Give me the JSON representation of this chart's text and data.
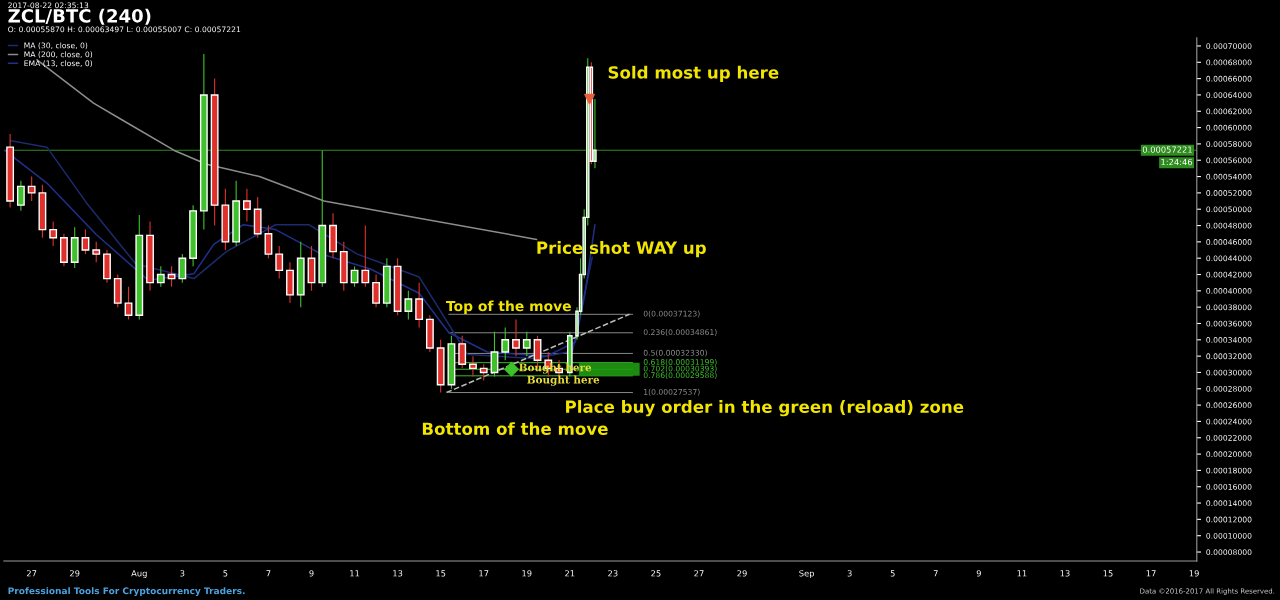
{
  "chart_data": {
    "type": "candlestick",
    "title": "ZCL/BTC (240)",
    "subtitle": "O: 0.00055870 H: 0.00063497 L: 0.00055007 C: 0.00057221",
    "x": [
      "2017-07-26T00:00",
      "2017-07-26T12:00",
      "2017-07-27T00:00",
      "2017-07-27T12:00",
      "2017-07-28T00:00",
      "2017-07-28T12:00",
      "2017-07-29T00:00",
      "2017-07-29T12:00",
      "2017-07-30T00:00",
      "2017-07-30T12:00",
      "2017-07-31T00:00",
      "2017-07-31T12:00",
      "2017-08-01T00:00",
      "2017-08-01T12:00",
      "2017-08-02T00:00",
      "2017-08-02T12:00",
      "2017-08-03T00:00",
      "2017-08-03T12:00",
      "2017-08-04T00:00",
      "2017-08-04T12:00",
      "2017-08-05T00:00",
      "2017-08-05T12:00",
      "2017-08-06T00:00",
      "2017-08-06T12:00",
      "2017-08-07T00:00",
      "2017-08-07T12:00",
      "2017-08-08T00:00",
      "2017-08-08T12:00",
      "2017-08-09T00:00",
      "2017-08-09T12:00",
      "2017-08-10T00:00",
      "2017-08-10T12:00",
      "2017-08-11T00:00",
      "2017-08-11T12:00",
      "2017-08-12T00:00",
      "2017-08-12T12:00",
      "2017-08-13T00:00",
      "2017-08-13T12:00",
      "2017-08-14T00:00",
      "2017-08-14T12:00",
      "2017-08-15T00:00",
      "2017-08-15T12:00",
      "2017-08-16T00:00",
      "2017-08-16T12:00",
      "2017-08-17T00:00",
      "2017-08-17T12:00",
      "2017-08-18T00:00",
      "2017-08-18T12:00",
      "2017-08-19T00:00",
      "2017-08-19T12:00",
      "2017-08-20T00:00",
      "2017-08-20T12:00",
      "2017-08-21T00:00",
      "2017-08-21T08:00",
      "2017-08-21T12:00",
      "2017-08-21T16:00",
      "2017-08-21T20:00",
      "2017-08-22T00:00",
      "2017-08-22T04:00"
    ],
    "ohlc": [
      [
        0.000576,
        0.000592,
        0.000502,
        0.00051
      ],
      [
        0.000505,
        0.000535,
        0.000498,
        0.000528
      ],
      [
        0.000528,
        0.00054,
        0.00051,
        0.00052
      ],
      [
        0.00052,
        0.00053,
        0.000465,
        0.000475
      ],
      [
        0.000475,
        0.000485,
        0.000455,
        0.000465
      ],
      [
        0.000465,
        0.00047,
        0.00043,
        0.000435
      ],
      [
        0.000435,
        0.000478,
        0.000428,
        0.000465
      ],
      [
        0.000465,
        0.000475,
        0.000445,
        0.00045
      ],
      [
        0.00045,
        0.00046,
        0.000435,
        0.000445
      ],
      [
        0.000445,
        0.00045,
        0.00041,
        0.000415
      ],
      [
        0.000415,
        0.00042,
        0.00038,
        0.000385
      ],
      [
        0.000385,
        0.000405,
        0.000365,
        0.00037
      ],
      [
        0.00037,
        0.000493,
        0.000365,
        0.000468
      ],
      [
        0.000468,
        0.000485,
        0.0004,
        0.00041
      ],
      [
        0.00041,
        0.00043,
        0.000405,
        0.00042
      ],
      [
        0.00042,
        0.00043,
        0.000405,
        0.000415
      ],
      [
        0.000415,
        0.000445,
        0.00041,
        0.00044
      ],
      [
        0.00044,
        0.000505,
        0.00043,
        0.000498
      ],
      [
        0.000498,
        0.00069,
        0.000475,
        0.00064
      ],
      [
        0.00064,
        0.00066,
        0.00048,
        0.000505
      ],
      [
        0.000505,
        0.000525,
        0.00045,
        0.00046
      ],
      [
        0.00046,
        0.000535,
        0.000455,
        0.00051
      ],
      [
        0.00051,
        0.000525,
        0.000485,
        0.0005
      ],
      [
        0.0005,
        0.000515,
        0.000465,
        0.00047
      ],
      [
        0.00047,
        0.00048,
        0.00044,
        0.000445
      ],
      [
        0.000445,
        0.000455,
        0.000415,
        0.000425
      ],
      [
        0.000425,
        0.000435,
        0.000385,
        0.000395
      ],
      [
        0.000395,
        0.00046,
        0.00038,
        0.00044
      ],
      [
        0.00044,
        0.000455,
        0.0004,
        0.00041
      ],
      [
        0.00041,
        0.000572,
        0.000405,
        0.00048
      ],
      [
        0.00048,
        0.000495,
        0.00044,
        0.000448
      ],
      [
        0.000448,
        0.00046,
        0.0004,
        0.00041
      ],
      [
        0.00041,
        0.00043,
        0.000405,
        0.000425
      ],
      [
        0.000425,
        0.00048,
        0.000405,
        0.00041
      ],
      [
        0.00041,
        0.00042,
        0.00038,
        0.000385
      ],
      [
        0.000385,
        0.00044,
        0.00038,
        0.00043
      ],
      [
        0.00043,
        0.00044,
        0.00037,
        0.000375
      ],
      [
        0.000375,
        0.0004,
        0.000365,
        0.00039
      ],
      [
        0.00039,
        0.00041,
        0.000355,
        0.000365
      ],
      [
        0.000365,
        0.00037,
        0.000325,
        0.00033
      ],
      [
        0.00033,
        0.00034,
        0.00027537,
        0.000285
      ],
      [
        0.000285,
        0.000345,
        0.00028,
        0.000335
      ],
      [
        0.000335,
        0.000345,
        0.000305,
        0.00031
      ],
      [
        0.00031,
        0.00032,
        0.000295,
        0.000305
      ],
      [
        0.000305,
        0.00031,
        0.00029,
        0.0003
      ],
      [
        0.0003,
        0.00035,
        0.000295,
        0.000325
      ],
      [
        0.000325,
        0.000355,
        0.000315,
        0.00034
      ],
      [
        0.00034,
        0.000365,
        0.00032,
        0.00033
      ],
      [
        0.00033,
        0.00035,
        0.00032,
        0.00034
      ],
      [
        0.00034,
        0.000345,
        0.000305,
        0.000315
      ],
      [
        0.000315,
        0.000325,
        0.000295,
        0.000305
      ],
      [
        0.000305,
        0.000315,
        0.000295,
        0.0003
      ],
      [
        0.0003,
        0.00035,
        0.000295,
        0.000345
      ],
      [
        0.000345,
        0.00038,
        0.00034,
        0.000375
      ],
      [
        0.000375,
        0.00044,
        0.00037,
        0.00042
      ],
      [
        0.00042,
        0.0005,
        0.000415,
        0.00049
      ],
      [
        0.00049,
        0.000685,
        0.00048,
        0.000674
      ],
      [
        0.000674,
        0.00068,
        0.000555,
        0.0005587
      ],
      [
        0.0005587,
        0.00063497,
        0.00055007,
        0.00057221
      ]
    ],
    "colors": [
      "#e0302b",
      "#3ec12b",
      "#e0302b",
      "#e0302b",
      "#e0302b",
      "#e0302b",
      "#3ec12b",
      "#e0302b",
      "#e0302b",
      "#e0302b",
      "#e0302b",
      "#e0302b",
      "#3ec12b",
      "#e0302b",
      "#3ec12b",
      "#e0302b",
      "#3ec12b",
      "#3ec12b",
      "#3ec12b",
      "#e0302b",
      "#e0302b",
      "#3ec12b",
      "#e0302b",
      "#e0302b",
      "#e0302b",
      "#e0302b",
      "#e0302b",
      "#3ec12b",
      "#e0302b",
      "#3ec12b",
      "#e0302b",
      "#e0302b",
      "#3ec12b",
      "#e0302b",
      "#e0302b",
      "#3ec12b",
      "#e0302b",
      "#3ec12b",
      "#e0302b",
      "#e0302b",
      "#e0302b",
      "#3ec12b",
      "#e0302b",
      "#e0302b",
      "#e0302b",
      "#3ec12b",
      "#3ec12b",
      "#e0302b",
      "#3ec12b",
      "#e0302b",
      "#e0302b",
      "#e0302b",
      "#3ec12b",
      "#3ec12b",
      "#3ec12b",
      "#3ec12b",
      "#3ec12b",
      "#e0302b",
      "#3ec12b"
    ],
    "series": [
      {
        "type": "line",
        "name": "MA (30, close, 0)",
        "color": "#1c2a6e",
        "x": [
          "2017-07-26T01:00",
          "2017-07-27T17:00",
          "2017-07-29T13:00",
          "2017-07-31T20:00",
          "2017-08-03T13:00",
          "2017-08-05T01:00",
          "2017-08-07T08:00",
          "2017-08-08T21:00",
          "2017-08-11T03:00",
          "2017-08-14T00:00",
          "2017-08-16T06:00",
          "2017-08-19T08:00",
          "2017-08-21T03:00",
          "2017-08-22T01:00"
        ],
        "values": [
          0.000584,
          0.000576,
          0.000508,
          0.000433,
          0.000415,
          0.000448,
          0.000481,
          0.000481,
          0.000445,
          0.000417,
          0.000322,
          0.000317,
          0.000326,
          0.000441
        ]
      },
      {
        "type": "line",
        "name": "MA (200, close, 0)",
        "color": "#8c8c8c",
        "x": [
          "2017-07-27T06:00",
          "2017-07-29T21:00",
          "2017-07-31T05:30",
          "2017-08-02T15:00",
          "2017-08-04T03:00",
          "2017-08-06T14:00",
          "2017-08-09T14:00",
          "2017-08-14T00:00",
          "2017-08-19T11:00"
        ],
        "values": [
          0.000683,
          0.00063,
          0.000609,
          0.000572,
          0.000555,
          0.00054,
          0.00051,
          0.000489,
          0.000463
        ]
      },
      {
        "type": "line",
        "name": "EMA (13, close, 0)",
        "color": "#1f2f8a",
        "x": [
          "2017-07-25T18:00",
          "2017-07-27T17:00",
          "2017-07-30T00:00",
          "2017-08-01T10:00",
          "2017-08-03T13:00",
          "2017-08-04T11:00",
          "2017-08-05T20:00",
          "2017-08-07T08:00",
          "2017-08-09T11:00",
          "2017-08-11T17:00",
          "2017-08-14T00:00",
          "2017-08-15T09:00",
          "2017-08-17T04:00",
          "2017-08-19T22:00",
          "2017-08-21T06:00",
          "2017-08-21T17:00",
          "2017-08-22T04:00"
        ],
        "values": [
          0.000572,
          0.000532,
          0.000469,
          0.000413,
          0.000421,
          0.000457,
          0.000481,
          0.000475,
          0.000445,
          0.000427,
          0.000397,
          0.000349,
          0.000325,
          0.00032,
          0.000337,
          0.000397,
          0.000481
        ]
      },
      {
        "type": "line",
        "color": "#bbbbbb",
        "line_style": "dashed",
        "x": [
          "2017-08-15T06:30",
          "2017-08-23T18:30"
        ],
        "values": [
          0.00027537,
          0.00037123
        ]
      },
      {
        "type": "scatter",
        "color": "#e8603a",
        "marker": "triangle",
        "x": [
          "2017-08-21T22:00"
        ],
        "values": [
          0.000635
        ]
      },
      {
        "type": "scatter",
        "color": "#3ec12b",
        "marker": "diamond",
        "x": [
          "2017-08-18T07:00"
        ],
        "values": [
          0.000304
        ]
      }
    ],
    "ref_lines": [
      {
        "axis": "y",
        "value": 0.00057221,
        "label": "0.00057221",
        "color": "#2e8b1e"
      },
      {
        "axis": "y",
        "value": 0.00037123,
        "label": "0(0.00037123)",
        "color": "#8c8c8c"
      },
      {
        "axis": "y",
        "value": 0.00034861,
        "label": "0.236(0.00034861)",
        "color": "#8c8c8c"
      },
      {
        "axis": "y",
        "value": 0.0003233,
        "label": "0.5(0.00032330)",
        "color": "#8c8c8c"
      },
      {
        "axis": "y",
        "value": 0.00031199,
        "label": "0.618(0.00031199)",
        "color": "#3ec12b"
      },
      {
        "axis": "y",
        "value": 0.00030393,
        "label": "0.702(0.00030393)",
        "color": "#3ec12b"
      },
      {
        "axis": "y",
        "value": 0.00029588,
        "label": "0.786(0.00029588)",
        "color": "#3ec12b"
      },
      {
        "axis": "y",
        "value": 0.00027537,
        "label": "1(0.00027537)",
        "color": "#8c8c8c"
      }
    ],
    "bands": [
      {
        "axis": "y",
        "from": 0.00029588,
        "to": 0.00031199,
        "color": "#1f9a12"
      }
    ],
    "annotations": [
      "2017-08-22 02:35:13",
      "Professional Tools For Cryptocurrency Traders.",
      "Data ©2016-2017 All Rights Reserved.",
      "1:24:46",
      "Sold most up here",
      {
        "text": "Bought here",
        "x": "2017-08-18T15:00",
        "y": 0.000305
      },
      {
        "text": "Bought here",
        "x": "2017-08-19T00:00",
        "y": 0.00029
      },
      "Price shot WAY up",
      "Top of the move",
      "Bottom of the move",
      "Place buy order in the green (reload) zone"
    ],
    "xlim": [
      "2017-07-25T17:00",
      "2017-09-19T03:00"
    ],
    "xticks": [
      {
        "value": "2017-07-27",
        "label": "27"
      },
      {
        "value": "2017-07-29",
        "label": "29"
      },
      {
        "value": "2017-08-01",
        "label": "Aug"
      },
      {
        "value": "2017-08-03",
        "label": "3"
      },
      {
        "value": "2017-08-05",
        "label": "5"
      },
      {
        "value": "2017-08-07",
        "label": "7"
      },
      {
        "value": "2017-08-09",
        "label": "9"
      },
      {
        "value": "2017-08-11",
        "label": "11"
      },
      {
        "value": "2017-08-13",
        "label": "13"
      },
      {
        "value": "2017-08-15",
        "label": "15"
      },
      {
        "value": "2017-08-17",
        "label": "17"
      },
      {
        "value": "2017-08-19",
        "label": "19"
      },
      {
        "value": "2017-08-21",
        "label": "21"
      },
      {
        "value": "2017-08-23",
        "label": "23"
      },
      {
        "value": "2017-08-25",
        "label": "25"
      },
      {
        "value": "2017-08-27",
        "label": "27"
      },
      {
        "value": "2017-08-29",
        "label": "29"
      },
      {
        "value": "2017-09-01",
        "label": "Sep"
      },
      {
        "value": "2017-09-03",
        "label": "3"
      },
      {
        "value": "2017-09-05",
        "label": "5"
      },
      {
        "value": "2017-09-07",
        "label": "7"
      },
      {
        "value": "2017-09-09",
        "label": "9"
      },
      {
        "value": "2017-09-11",
        "label": "11"
      },
      {
        "value": "2017-09-13",
        "label": "13"
      },
      {
        "value": "2017-09-15",
        "label": "15"
      },
      {
        "value": "2017-09-17",
        "label": "17"
      },
      {
        "value": "2017-09-19",
        "label": "19"
      }
    ],
    "ylim": [
      6.9e-05,
      0.00071
    ],
    "yticks": [
      {
        "value": 8e-05,
        "label": "0.00008000"
      },
      {
        "value": 0.0001,
        "label": "0.00010000"
      },
      {
        "value": 0.00012,
        "label": "0.00012000"
      },
      {
        "value": 0.00014,
        "label": "0.00014000"
      },
      {
        "value": 0.00016,
        "label": "0.00016000"
      },
      {
        "value": 0.00018,
        "label": "0.00018000"
      },
      {
        "value": 0.0002,
        "label": "0.00020000"
      },
      {
        "value": 0.00022,
        "label": "0.00022000"
      },
      {
        "value": 0.00024,
        "label": "0.00024000"
      },
      {
        "value": 0.00026,
        "label": "0.00026000"
      },
      {
        "value": 0.00028,
        "label": "0.00028000"
      },
      {
        "value": 0.0003,
        "label": "0.00030000"
      },
      {
        "value": 0.00032,
        "label": "0.00032000"
      },
      {
        "value": 0.00034,
        "label": "0.00034000"
      },
      {
        "value": 0.00036,
        "label": "0.00036000"
      },
      {
        "value": 0.00038,
        "label": "0.00038000"
      },
      {
        "value": 0.0004,
        "label": "0.00040000"
      },
      {
        "value": 0.00042,
        "label": "0.00042000"
      },
      {
        "value": 0.00044,
        "label": "0.00044000"
      },
      {
        "value": 0.00046,
        "label": "0.00046000"
      },
      {
        "value": 0.00048,
        "label": "0.00048000"
      },
      {
        "value": 0.0005,
        "label": "0.00050000"
      },
      {
        "value": 0.00052,
        "label": "0.00052000"
      },
      {
        "value": 0.00054,
        "label": "0.00054000"
      },
      {
        "value": 0.00056,
        "label": "0.00056000"
      },
      {
        "value": 0.00058,
        "label": "0.00058000"
      },
      {
        "value": 0.0006,
        "label": "0.00060000"
      },
      {
        "value": 0.00062,
        "label": "0.00062000"
      },
      {
        "value": 0.00064,
        "label": "0.00064000"
      },
      {
        "value": 0.00066,
        "label": "0.00066000"
      },
      {
        "value": 0.00068,
        "label": "0.00068000"
      },
      {
        "value": 0.0007,
        "label": "0.00070000"
      }
    ],
    "grid": false,
    "legend": "top left"
  }
}
